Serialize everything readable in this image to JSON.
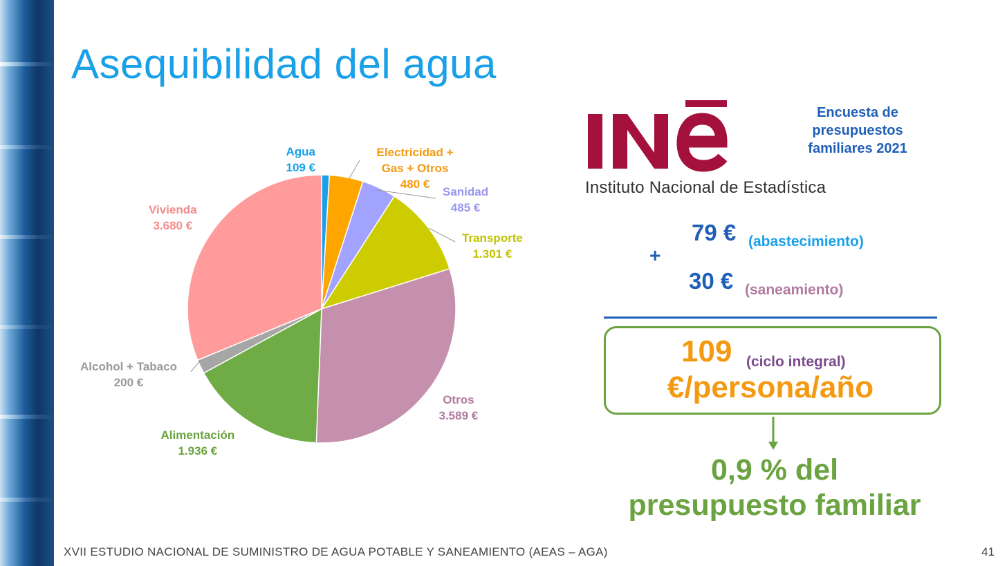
{
  "slide": {
    "title": "Asequibilidad del agua",
    "footer": "XVII ESTUDIO NACIONAL DE SUMINISTRO DE AGUA POTABLE Y SANEAMIENTO (AEAS – AGA)",
    "page_number": "41"
  },
  "logo": {
    "name": "INE",
    "subtitle": "Instituto Nacional de Estadística",
    "color": "#a3113c"
  },
  "survey_label": [
    "Encuesta de",
    "presupuestos",
    "familiares 2021"
  ],
  "calc": {
    "supply_value": "79 €",
    "supply_label": "(abastecimiento)",
    "sanitation_value": "30 €",
    "sanitation_label": "(saneamiento)",
    "plus": "+",
    "total_value": "109",
    "total_label": "(ciclo integral)",
    "total_unit": "€/persona/año",
    "conclusion": [
      "0,9 % del",
      "presupuesto familiar"
    ]
  },
  "colors": {
    "title": "#1aa0e8",
    "blue_text": "#1f5fb8",
    "orange": "#f39a12",
    "green": "#6aa33f",
    "purple_text": "#7a4b8c",
    "mauve_text": "#b07ba0"
  },
  "chart_data": {
    "type": "pie",
    "unit": "€",
    "start_angle_deg": 0,
    "direction": "clockwise",
    "slices": [
      {
        "label": "Agua",
        "value": 109,
        "value_label": "109 €",
        "color": "#1aa0e8",
        "text_color": "#1aa0e8"
      },
      {
        "label": "Electricidad + Gas + Otros",
        "label_lines": [
          "Electricidad +",
          "Gas + Otros"
        ],
        "value": 480,
        "value_label": "480 €",
        "color": "#ffa500",
        "text_color": "#f39a12"
      },
      {
        "label": "Sanidad",
        "value": 485,
        "value_label": "485 €",
        "color": "#a2a2ff",
        "text_color": "#9a95f0"
      },
      {
        "label": "Transporte",
        "value": 1301,
        "value_label": "1.301 €",
        "color": "#cccc00",
        "text_color": "#c2c200"
      },
      {
        "label": "Otros",
        "value": 3589,
        "value_label": "3.589 €",
        "color": "#c490ad",
        "text_color": "#b07ba0"
      },
      {
        "label": "Alimentación",
        "value": 1936,
        "value_label": "1.936 €",
        "color": "#70ac46",
        "text_color": "#6aa33f"
      },
      {
        "label": "Alcohol + Tabaco",
        "value": 200,
        "value_label": "200 €",
        "color": "#a6a6a6",
        "text_color": "#999999"
      },
      {
        "label": "Vivienda",
        "value": 3680,
        "value_label": "3.680 €",
        "color": "#ff9b9b",
        "text_color": "#f28c8c"
      }
    ]
  }
}
